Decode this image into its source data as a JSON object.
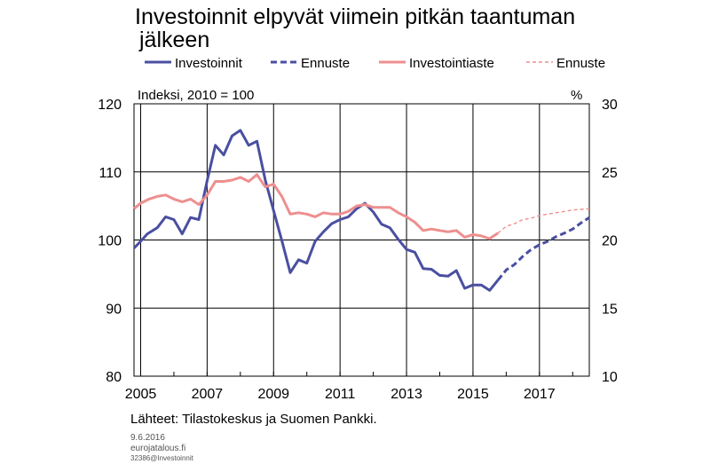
{
  "chart_data": {
    "type": "line",
    "title": "Investoinnit elpyvät viimein pitkän taantuman",
    "title_line2": "jälkeen",
    "left_axis_note": "Indeksi, 2010 = 100",
    "right_axis_note": "%",
    "x_ticks": [
      "2005",
      "2007",
      "2009",
      "2011",
      "2013",
      "2015",
      "2017"
    ],
    "xlim": [
      2004.8,
      2018.5
    ],
    "ylim_left": [
      80,
      120
    ],
    "yticks_left": [
      "80",
      "90",
      "100",
      "110",
      "120"
    ],
    "ylim_right": [
      10,
      30
    ],
    "yticks_right": [
      "10",
      "15",
      "20",
      "25",
      "30"
    ],
    "grid": true,
    "legend_position": "top",
    "series": [
      {
        "name": "Investoinnit",
        "axis": "left",
        "style": "solid",
        "color": "#4a4fa1",
        "points": [
          [
            2004.8,
            98.8
          ],
          [
            2005.0,
            99.8
          ],
          [
            2005.2,
            100.9
          ],
          [
            2005.5,
            101.8
          ],
          [
            2005.75,
            103.4
          ],
          [
            2006.0,
            103.0
          ],
          [
            2006.25,
            100.9
          ],
          [
            2006.5,
            103.3
          ],
          [
            2006.75,
            103.0
          ],
          [
            2007.0,
            108.7
          ],
          [
            2007.25,
            113.9
          ],
          [
            2007.5,
            112.5
          ],
          [
            2007.75,
            115.3
          ],
          [
            2008.0,
            116.1
          ],
          [
            2008.25,
            113.9
          ],
          [
            2008.5,
            114.5
          ],
          [
            2008.75,
            108.8
          ],
          [
            2009.0,
            104.3
          ],
          [
            2009.25,
            99.9
          ],
          [
            2009.5,
            95.2
          ],
          [
            2009.75,
            97.1
          ],
          [
            2010.0,
            96.6
          ],
          [
            2010.25,
            99.8
          ],
          [
            2010.5,
            101.2
          ],
          [
            2010.75,
            102.4
          ],
          [
            2011.0,
            103.0
          ],
          [
            2011.25,
            103.4
          ],
          [
            2011.5,
            104.6
          ],
          [
            2011.75,
            105.4
          ],
          [
            2012.0,
            104.1
          ],
          [
            2012.25,
            102.3
          ],
          [
            2012.5,
            101.8
          ],
          [
            2012.75,
            100.1
          ],
          [
            2013.0,
            98.6
          ],
          [
            2013.25,
            98.2
          ],
          [
            2013.5,
            95.8
          ],
          [
            2013.75,
            95.7
          ],
          [
            2014.0,
            94.8
          ],
          [
            2014.25,
            94.7
          ],
          [
            2014.5,
            95.5
          ],
          [
            2014.75,
            92.9
          ],
          [
            2015.0,
            93.4
          ],
          [
            2015.25,
            93.4
          ],
          [
            2015.5,
            92.6
          ],
          [
            2015.75,
            94.1
          ]
        ]
      },
      {
        "name": "Ennuste",
        "axis": "left",
        "style": "dashed",
        "color": "#4a4fa1",
        "points": [
          [
            2015.75,
            94.1
          ],
          [
            2016.0,
            95.6
          ],
          [
            2016.25,
            96.4
          ],
          [
            2016.5,
            97.6
          ],
          [
            2016.75,
            98.6
          ],
          [
            2017.0,
            99.3
          ],
          [
            2017.25,
            99.8
          ],
          [
            2017.5,
            100.5
          ],
          [
            2017.75,
            101.0
          ],
          [
            2018.0,
            101.6
          ],
          [
            2018.25,
            102.5
          ],
          [
            2018.5,
            103.3
          ]
        ]
      },
      {
        "name": "Investointiaste",
        "axis": "right",
        "style": "solid",
        "color": "#ee8f8f",
        "points": [
          [
            2004.8,
            22.3
          ],
          [
            2005.0,
            22.7
          ],
          [
            2005.25,
            23.0
          ],
          [
            2005.5,
            23.2
          ],
          [
            2005.75,
            23.3
          ],
          [
            2006.0,
            23.0
          ],
          [
            2006.25,
            22.8
          ],
          [
            2006.5,
            23.0
          ],
          [
            2006.75,
            22.6
          ],
          [
            2007.0,
            23.3
          ],
          [
            2007.25,
            24.3
          ],
          [
            2007.5,
            24.3
          ],
          [
            2007.75,
            24.4
          ],
          [
            2008.0,
            24.6
          ],
          [
            2008.25,
            24.3
          ],
          [
            2008.5,
            24.8
          ],
          [
            2008.75,
            23.9
          ],
          [
            2009.0,
            24.1
          ],
          [
            2009.25,
            23.2
          ],
          [
            2009.5,
            21.9
          ],
          [
            2009.75,
            22.0
          ],
          [
            2010.0,
            21.9
          ],
          [
            2010.25,
            21.7
          ],
          [
            2010.5,
            22.0
          ],
          [
            2010.75,
            21.9
          ],
          [
            2011.0,
            21.9
          ],
          [
            2011.25,
            22.1
          ],
          [
            2011.5,
            22.5
          ],
          [
            2011.75,
            22.6
          ],
          [
            2012.0,
            22.4
          ],
          [
            2012.25,
            22.4
          ],
          [
            2012.5,
            22.4
          ],
          [
            2012.75,
            22.0
          ],
          [
            2013.0,
            21.7
          ],
          [
            2013.25,
            21.3
          ],
          [
            2013.5,
            20.7
          ],
          [
            2013.75,
            20.8
          ],
          [
            2014.0,
            20.7
          ],
          [
            2014.25,
            20.6
          ],
          [
            2014.5,
            20.7
          ],
          [
            2014.75,
            20.2
          ],
          [
            2015.0,
            20.4
          ],
          [
            2015.25,
            20.3
          ],
          [
            2015.5,
            20.1
          ],
          [
            2015.75,
            20.5
          ]
        ]
      },
      {
        "name": "Ennuste",
        "axis": "right",
        "style": "dashed-thin",
        "color": "#ee8f8f",
        "points": [
          [
            2015.75,
            20.5
          ],
          [
            2016.0,
            21.0
          ],
          [
            2016.25,
            21.2
          ],
          [
            2016.5,
            21.5
          ],
          [
            2016.75,
            21.6
          ],
          [
            2017.0,
            21.8
          ],
          [
            2017.25,
            21.9
          ],
          [
            2017.5,
            22.0
          ],
          [
            2017.75,
            22.1
          ],
          [
            2018.0,
            22.2
          ],
          [
            2018.25,
            22.25
          ],
          [
            2018.5,
            22.3
          ]
        ]
      }
    ]
  },
  "legend": [
    {
      "label": "Investoinnit",
      "color": "#4a4fa1",
      "style": "solid"
    },
    {
      "label": "Ennuste",
      "color": "#4a4fa1",
      "style": "dashed"
    },
    {
      "label": "Investointiaste",
      "color": "#ee8f8f",
      "style": "solid"
    },
    {
      "label": "Ennuste",
      "color": "#ee8f8f",
      "style": "dashed-thin"
    }
  ],
  "source": "Lähteet: Tilastokeskus  ja Suomen Pankki.",
  "footer": {
    "date": "9.6.2016",
    "site": "eurojatalous.fi",
    "code": "32386@Investoinnit"
  }
}
